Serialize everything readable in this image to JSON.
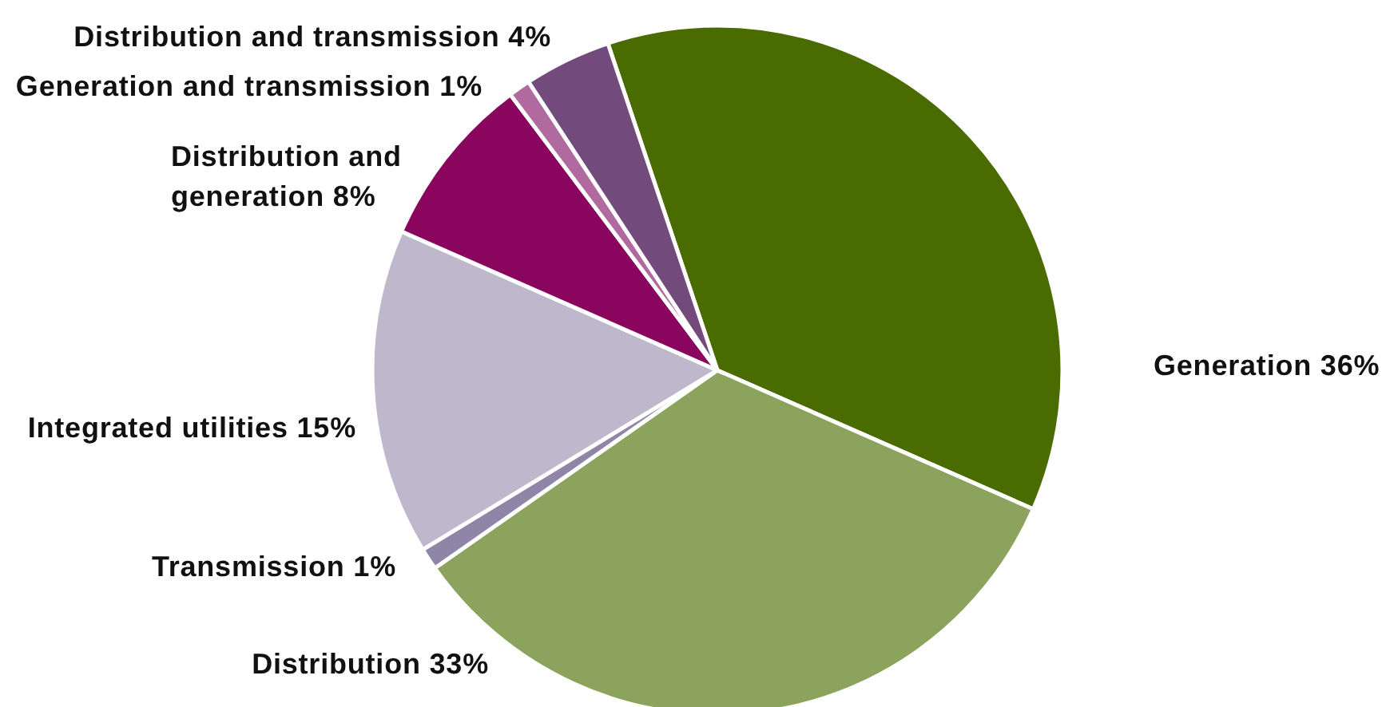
{
  "chart_data": {
    "type": "pie",
    "categories": [
      "Generation",
      "Distribution",
      "Transmission",
      "Integrated utilities",
      "Distribution and generation",
      "Generation and transmission",
      "Distribution and transmission"
    ],
    "values": [
      36,
      33,
      1,
      15,
      8,
      1,
      4
    ],
    "value_labels": [
      "36%",
      "33%",
      "1%",
      "15%",
      "8%",
      "1%",
      "4%"
    ],
    "colors": [
      "#4a6b00",
      "#8ba35c",
      "#8f85a6",
      "#bfb8cc",
      "#8a055e",
      "#b06a9f",
      "#724a7c"
    ]
  }
}
